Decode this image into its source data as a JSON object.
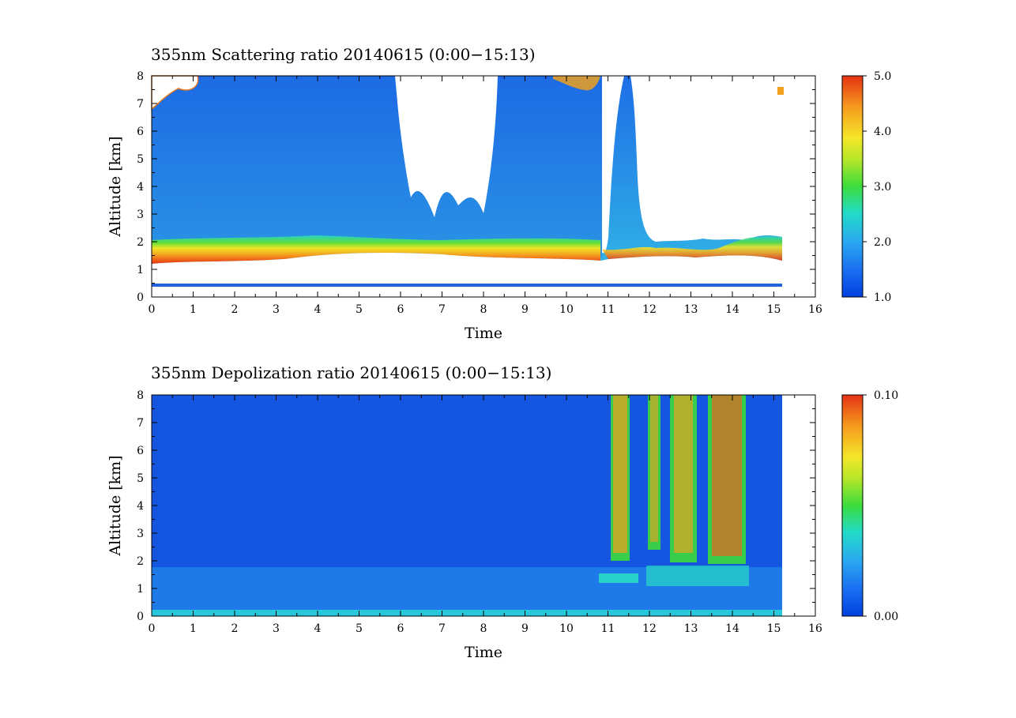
{
  "chart_data": [
    {
      "type": "heatmap",
      "title": "355nm Scattering ratio  20140615 (0:00−15:13)",
      "xlabel": "Time",
      "ylabel": "Altitude [km]",
      "xlim": [
        0,
        16
      ],
      "ylim": [
        0,
        8
      ],
      "x_ticks": [
        "0",
        "1",
        "2",
        "3",
        "4",
        "5",
        "6",
        "7",
        "8",
        "9",
        "10",
        "11",
        "12",
        "13",
        "14",
        "15",
        "16"
      ],
      "y_ticks": [
        "0",
        "1",
        "2",
        "3",
        "4",
        "5",
        "6",
        "7",
        "8"
      ],
      "data_extent_x": [
        0,
        15.22
      ],
      "colorbar": {
        "min": 1.0,
        "max": 5.0,
        "tick_labels": [
          "1.0",
          "2.0",
          "3.0",
          "4.0",
          "5.0"
        ]
      }
    },
    {
      "type": "heatmap",
      "title": "355nm Depolization ratio  20140615 (0:00−15:13)",
      "xlabel": "Time",
      "ylabel": "Altitude [km]",
      "xlim": [
        0,
        16
      ],
      "ylim": [
        0,
        8
      ],
      "x_ticks": [
        "0",
        "1",
        "2",
        "3",
        "4",
        "5",
        "6",
        "7",
        "8",
        "9",
        "10",
        "11",
        "12",
        "13",
        "14",
        "15",
        "16"
      ],
      "y_ticks": [
        "0",
        "1",
        "2",
        "3",
        "4",
        "5",
        "6",
        "7",
        "8"
      ],
      "data_extent_x": [
        0,
        15.22
      ],
      "colorbar": {
        "min": 0.0,
        "max": 0.1,
        "tick_labels": [
          "0.00",
          "0.10"
        ]
      }
    }
  ],
  "colors": {
    "colormap": [
      "#0050e6",
      "#1e78f0",
      "#28b4f0",
      "#28dcc8",
      "#3cdc3c",
      "#f0e628",
      "#f0a01e",
      "#e63c14"
    ]
  }
}
